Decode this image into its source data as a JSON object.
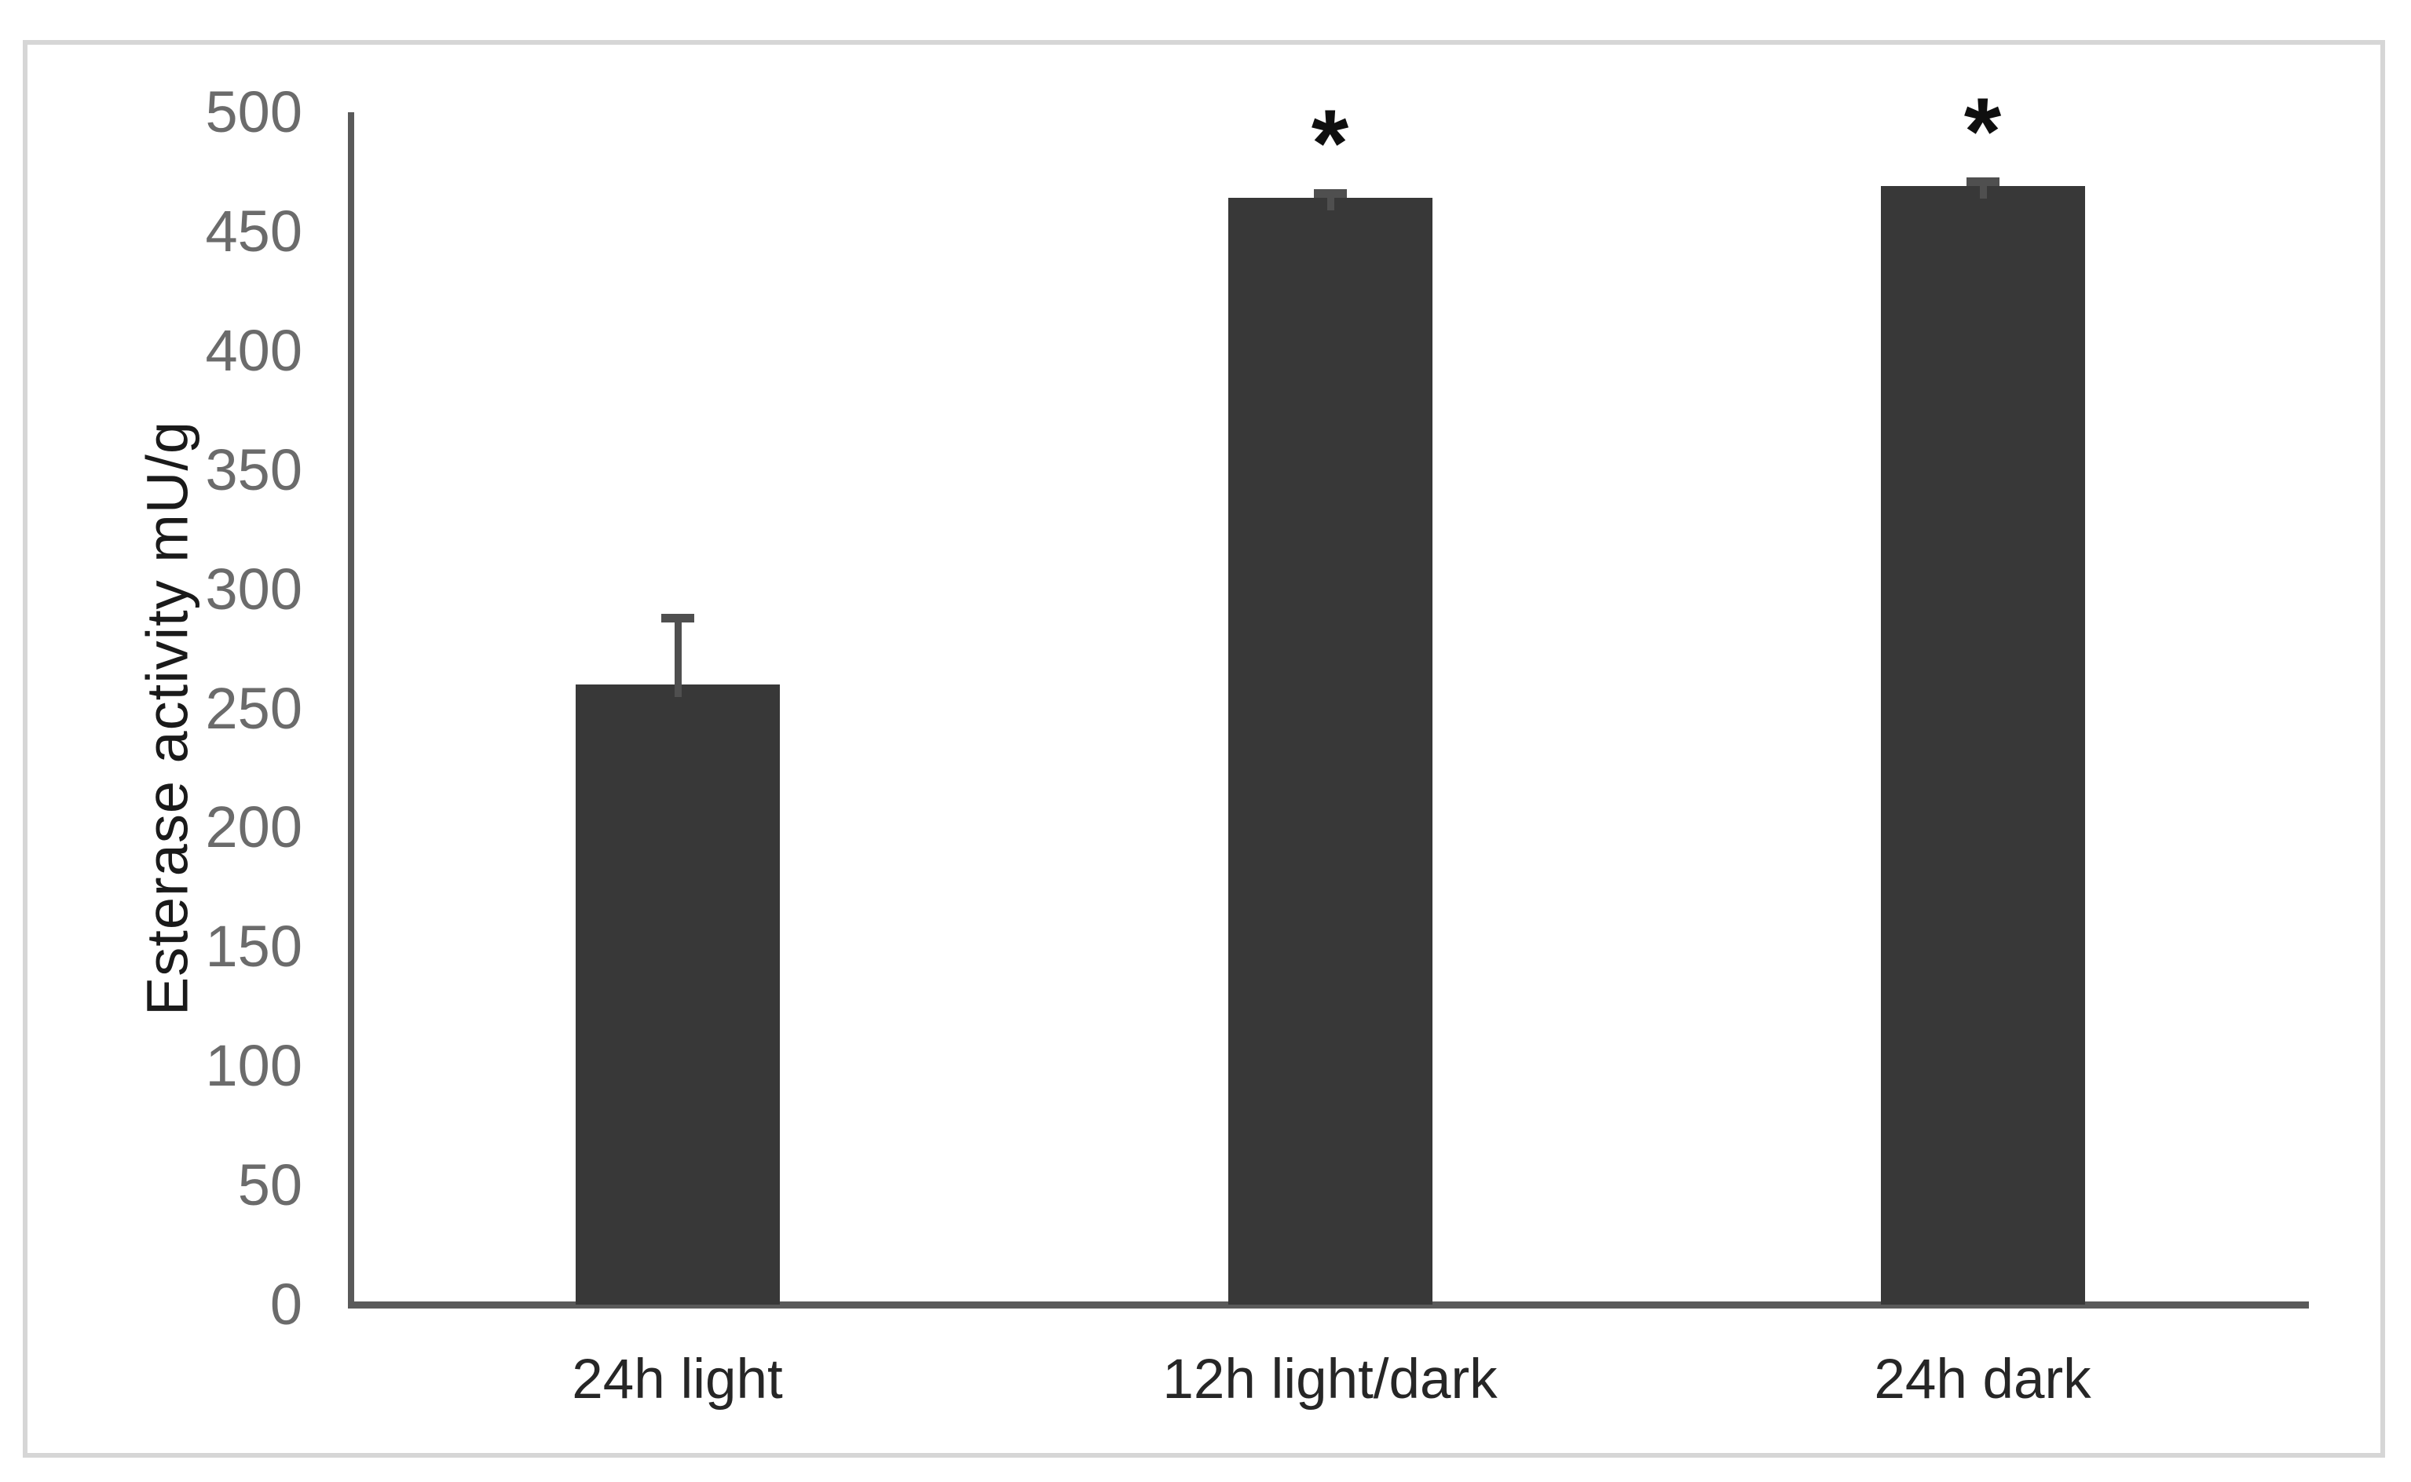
{
  "chart_data": {
    "type": "bar",
    "title": "",
    "xlabel": "",
    "ylabel": "Esterase activity mU/g",
    "categories": [
      "24h light",
      "12h light/dark",
      "24h dark"
    ],
    "series": [
      {
        "name": "Esterase activity",
        "values": [
          260,
          464,
          469
        ],
        "errors_plus": [
          29,
          3,
          3
        ],
        "significance": [
          "",
          "*",
          "*"
        ]
      }
    ],
    "ylim": [
      0,
      500
    ],
    "ytick_step": 50,
    "yticks": [
      0,
      50,
      100,
      150,
      200,
      250,
      300,
      350,
      400,
      450,
      500
    ],
    "grid": false,
    "legend": false,
    "colors": {
      "bar_fill": "#383838",
      "error_bar": "#4f4f4f",
      "axis_line": "#5a5a5a",
      "ytick_label": "#6b6b6b",
      "category_label": "#262626",
      "ylabel_text": "#1a1a1a",
      "significance_marker": "#0f0f0f",
      "frame_border": "#d6d6d6",
      "background": "#ffffff"
    }
  }
}
